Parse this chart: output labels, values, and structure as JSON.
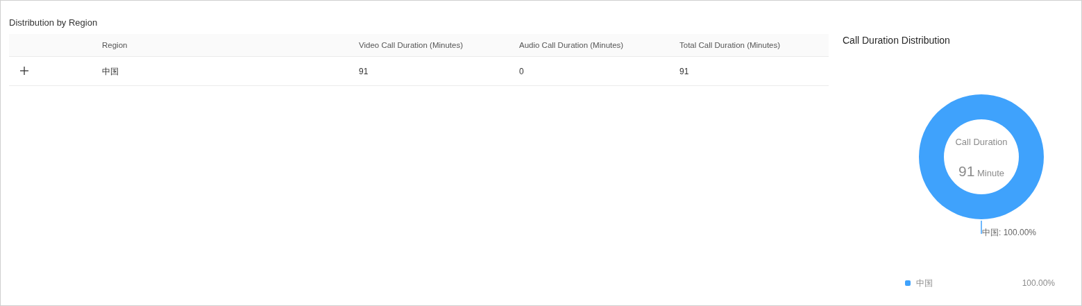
{
  "chart_data": [
    {
      "type": "other",
      "title": "Distribution by Region",
      "annotations": [
        "Region",
        "Video Call Duration (Minutes)",
        "Audio Call Duration (Minutes)",
        "Total Call Duration (Minutes)",
        "中国",
        "91",
        "0",
        "91"
      ]
    },
    {
      "type": "donut",
      "title": "Call Duration Distribution",
      "categories": [
        "中国"
      ],
      "values": [
        100
      ],
      "colors": [
        "#3fa2fc"
      ],
      "value_labels": [
        "100.00%"
      ],
      "legend": "bottom",
      "annotations": [
        "Call Duration",
        "91",
        "Minute",
        {
          "text": "中国: 100.00%",
          "x": "中国"
        }
      ]
    }
  ]
}
